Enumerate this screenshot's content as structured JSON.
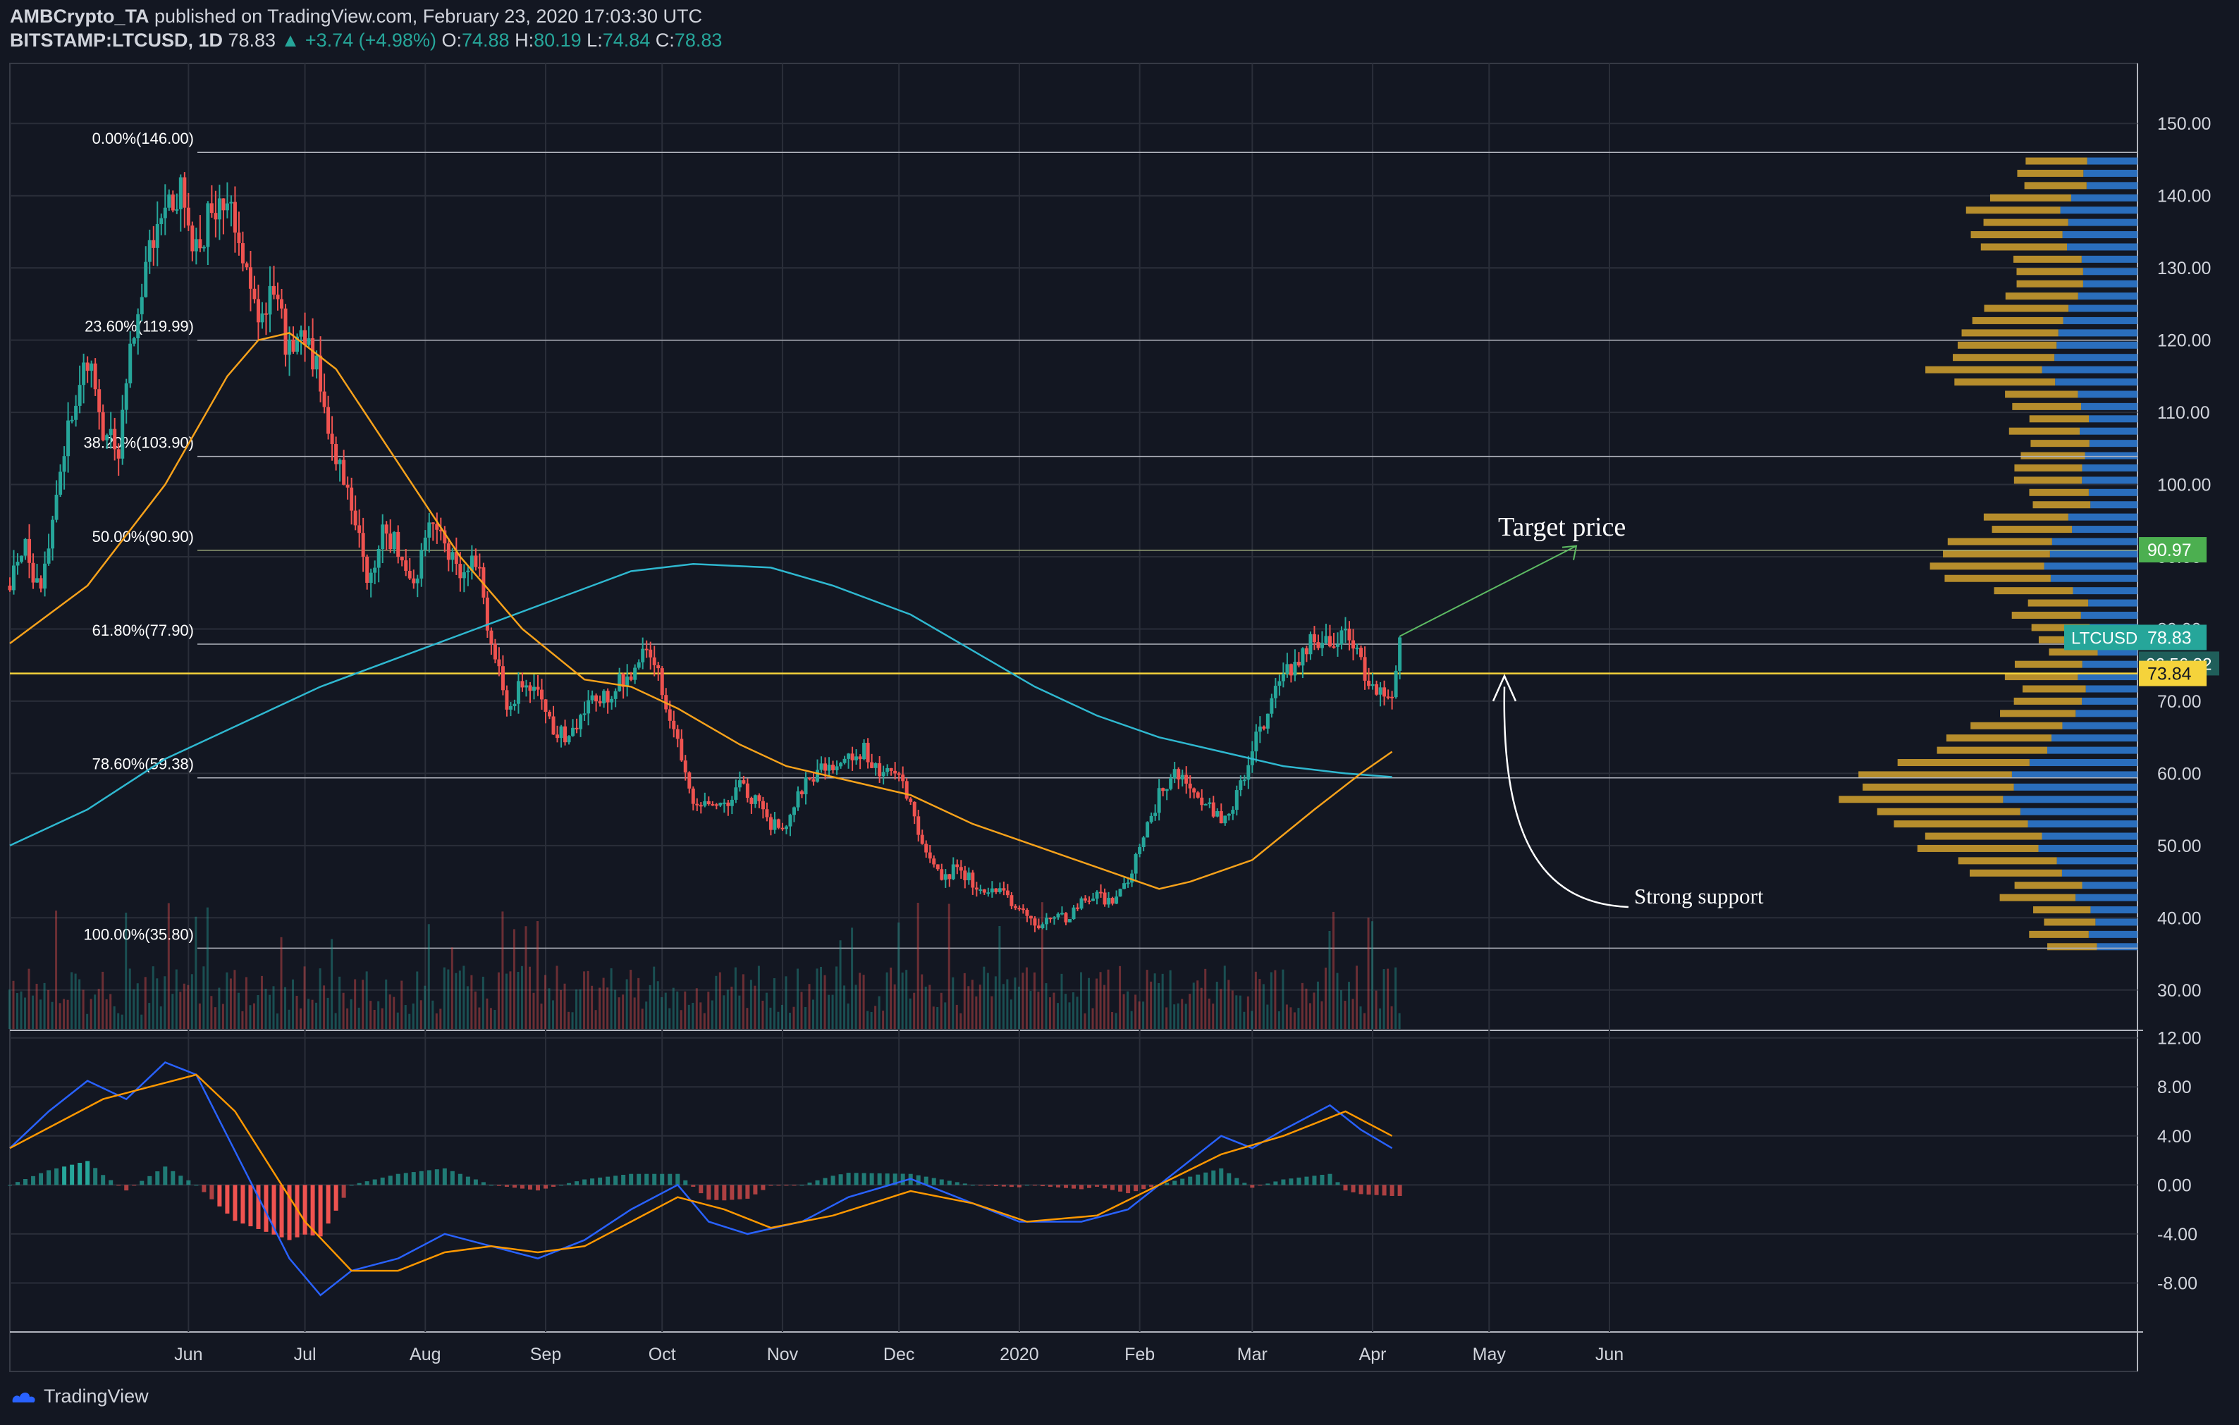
{
  "header": {
    "user": "AMBCrypto_TA",
    "published": "published on TradingView.com, February 23, 2020 17:03:30 UTC",
    "symbol": "BITSTAMP:LTCUSD, 1D",
    "last": "78.83",
    "change": "▲ +3.74 (+4.98%)",
    "o_label": "O:",
    "o": "74.88",
    "h_label": "H:",
    "h": "80.19",
    "l_label": "L:",
    "l": "74.84",
    "c_label": "C:",
    "c": "78.83"
  },
  "footer": {
    "brand": "TradingView"
  },
  "annotations": {
    "target": "Target price",
    "support": "Strong support"
  },
  "colors": {
    "background": "#131722",
    "up": "#26a69a",
    "down": "#ef5350",
    "ma_short": "#f7a21b",
    "ma_long": "#2fb8d0",
    "macd": "#2962ff",
    "signal": "#ff9800",
    "volume_profile_up": "#2a6ebd",
    "volume_profile_down": "#c99a2e",
    "support_line": "#f5d33b"
  },
  "chart_data": [
    {
      "type": "candlestick",
      "symbol": "BITSTAMP:LTCUSD",
      "timeframe": "1D",
      "x_ticks": [
        "Jun",
        "Jul",
        "Aug",
        "Sep",
        "Oct",
        "Nov",
        "Dec",
        "2020",
        "Feb",
        "Mar",
        "Apr",
        "May",
        "Jun"
      ],
      "y_ticks": [
        "150.00",
        "140.00",
        "130.00",
        "120.00",
        "110.00",
        "100.00",
        "90.00",
        "80.00",
        "70.00",
        "60.00",
        "50.00",
        "40.00",
        "30.00"
      ],
      "ylim": [
        25,
        155
      ],
      "fib_levels": [
        {
          "label": "0.00%(146.00)",
          "value": 146.0
        },
        {
          "label": "23.60%(119.99)",
          "value": 119.99
        },
        {
          "label": "38.20%(103.90)",
          "value": 103.9
        },
        {
          "label": "50.00%(90.90)",
          "value": 90.9
        },
        {
          "label": "61.80%(77.90)",
          "value": 77.9
        },
        {
          "label": "78.60%(59.38)",
          "value": 59.38
        },
        {
          "label": "100.00%(35.80)",
          "value": 35.8
        }
      ],
      "support_level": 73.84,
      "price_labels": [
        {
          "text": "90.97",
          "value": 90.97,
          "color": "#4caf50"
        },
        {
          "text": "LTCUSD",
          "value": 78.83,
          "color": "#26a69a"
        },
        {
          "text": "78.83",
          "value": 78.83,
          "color": "#26a69a"
        },
        {
          "text": "06:56:32",
          "value": 75.5,
          "color": "#26a69a"
        },
        {
          "text": "73.84",
          "value": 73.84,
          "color": "#f5d33b"
        }
      ],
      "price_path": [
        [
          0,
          86
        ],
        [
          4,
          92
        ],
        [
          8,
          84
        ],
        [
          12,
          99
        ],
        [
          16,
          110
        ],
        [
          20,
          117
        ],
        [
          24,
          108
        ],
        [
          28,
          104
        ],
        [
          32,
          122
        ],
        [
          36,
          132
        ],
        [
          40,
          138
        ],
        [
          44,
          140
        ],
        [
          48,
          133
        ],
        [
          52,
          138
        ],
        [
          56,
          140
        ],
        [
          60,
          132
        ],
        [
          64,
          122
        ],
        [
          68,
          126
        ],
        [
          72,
          118
        ],
        [
          76,
          121
        ],
        [
          80,
          114
        ],
        [
          84,
          104
        ],
        [
          88,
          98
        ],
        [
          92,
          86
        ],
        [
          96,
          94
        ],
        [
          100,
          91
        ],
        [
          104,
          86
        ],
        [
          108,
          96
        ],
        [
          112,
          92
        ],
        [
          116,
          86
        ],
        [
          120,
          90
        ],
        [
          124,
          78
        ],
        [
          128,
          70
        ],
        [
          132,
          72
        ],
        [
          136,
          73
        ],
        [
          140,
          66
        ],
        [
          144,
          65
        ],
        [
          148,
          69
        ],
        [
          152,
          70
        ],
        [
          156,
          72
        ],
        [
          160,
          74
        ],
        [
          164,
          78
        ],
        [
          168,
          72
        ],
        [
          172,
          65
        ],
        [
          176,
          56
        ],
        [
          180,
          55
        ],
        [
          184,
          56
        ],
        [
          188,
          58
        ],
        [
          192,
          56
        ],
        [
          196,
          53
        ],
        [
          200,
          52
        ],
        [
          204,
          58
        ],
        [
          208,
          60
        ],
        [
          212,
          61
        ],
        [
          216,
          62
        ],
        [
          220,
          63
        ],
        [
          224,
          60
        ],
        [
          228,
          61
        ],
        [
          232,
          55
        ],
        [
          236,
          50
        ],
        [
          240,
          45
        ],
        [
          244,
          47
        ],
        [
          248,
          45
        ],
        [
          252,
          44
        ],
        [
          256,
          43
        ],
        [
          260,
          41
        ],
        [
          264,
          39
        ],
        [
          268,
          40
        ],
        [
          272,
          40
        ],
        [
          276,
          42
        ],
        [
          280,
          43
        ],
        [
          284,
          42
        ],
        [
          288,
          45
        ],
        [
          292,
          51
        ],
        [
          296,
          57
        ],
        [
          300,
          61
        ],
        [
          304,
          58
        ],
        [
          308,
          56
        ],
        [
          312,
          53
        ],
        [
          316,
          57
        ],
        [
          320,
          63
        ],
        [
          324,
          69
        ],
        [
          328,
          73
        ],
        [
          332,
          76
        ],
        [
          336,
          79
        ],
        [
          340,
          77
        ],
        [
          344,
          79
        ],
        [
          348,
          75
        ],
        [
          352,
          72
        ],
        [
          356,
          70
        ],
        [
          358,
          78.83
        ]
      ],
      "ma_short_path": [
        [
          0,
          78
        ],
        [
          20,
          86
        ],
        [
          40,
          100
        ],
        [
          56,
          115
        ],
        [
          64,
          120
        ],
        [
          72,
          121
        ],
        [
          84,
          116
        ],
        [
          100,
          103
        ],
        [
          116,
          90
        ],
        [
          132,
          80
        ],
        [
          148,
          73
        ],
        [
          160,
          72
        ],
        [
          172,
          69
        ],
        [
          188,
          64
        ],
        [
          200,
          61
        ],
        [
          216,
          59
        ],
        [
          232,
          57
        ],
        [
          248,
          53
        ],
        [
          264,
          50
        ],
        [
          280,
          47
        ],
        [
          296,
          44
        ],
        [
          304,
          45
        ],
        [
          320,
          48
        ],
        [
          336,
          55
        ],
        [
          348,
          60
        ],
        [
          356,
          63
        ]
      ],
      "ma_long_path": [
        [
          0,
          50
        ],
        [
          20,
          55
        ],
        [
          40,
          62
        ],
        [
          60,
          67
        ],
        [
          80,
          72
        ],
        [
          100,
          76
        ],
        [
          120,
          80
        ],
        [
          140,
          84
        ],
        [
          160,
          88
        ],
        [
          176,
          89
        ],
        [
          196,
          88.5
        ],
        [
          212,
          86
        ],
        [
          232,
          82
        ],
        [
          248,
          77
        ],
        [
          264,
          72
        ],
        [
          280,
          68
        ],
        [
          296,
          65
        ],
        [
          312,
          63
        ],
        [
          328,
          61
        ],
        [
          344,
          60
        ],
        [
          356,
          59.5
        ]
      ]
    },
    {
      "type": "macd",
      "y_ticks": [
        "12.00",
        "8.00",
        "4.00",
        "0.00",
        "-4.00",
        "-8.00"
      ],
      "ylim": [
        -12,
        12.5
      ],
      "macd_path": [
        [
          0,
          3
        ],
        [
          10,
          6
        ],
        [
          20,
          8.5
        ],
        [
          30,
          7
        ],
        [
          40,
          10
        ],
        [
          48,
          9
        ],
        [
          56,
          4
        ],
        [
          64,
          -1
        ],
        [
          72,
          -6
        ],
        [
          80,
          -9
        ],
        [
          88,
          -7
        ],
        [
          100,
          -6
        ],
        [
          112,
          -4
        ],
        [
          124,
          -5
        ],
        [
          136,
          -6
        ],
        [
          148,
          -4.5
        ],
        [
          160,
          -2
        ],
        [
          172,
          0
        ],
        [
          180,
          -3
        ],
        [
          190,
          -4
        ],
        [
          204,
          -3
        ],
        [
          216,
          -1
        ],
        [
          232,
          0.5
        ],
        [
          248,
          -1.5
        ],
        [
          260,
          -3
        ],
        [
          276,
          -3
        ],
        [
          288,
          -2
        ],
        [
          300,
          1
        ],
        [
          312,
          4
        ],
        [
          320,
          3
        ],
        [
          328,
          4.5
        ],
        [
          340,
          6.5
        ],
        [
          348,
          4.5
        ],
        [
          356,
          3
        ]
      ],
      "signal_path": [
        [
          0,
          3
        ],
        [
          12,
          5
        ],
        [
          24,
          7
        ],
        [
          36,
          8
        ],
        [
          48,
          9
        ],
        [
          58,
          6
        ],
        [
          66,
          2
        ],
        [
          76,
          -3
        ],
        [
          88,
          -7
        ],
        [
          100,
          -7
        ],
        [
          112,
          -5.5
        ],
        [
          124,
          -5
        ],
        [
          136,
          -5.5
        ],
        [
          148,
          -5
        ],
        [
          160,
          -3
        ],
        [
          172,
          -1
        ],
        [
          184,
          -2
        ],
        [
          196,
          -3.5
        ],
        [
          212,
          -2.5
        ],
        [
          232,
          -0.5
        ],
        [
          248,
          -1.5
        ],
        [
          262,
          -3
        ],
        [
          280,
          -2.5
        ],
        [
          296,
          0
        ],
        [
          312,
          2.5
        ],
        [
          328,
          4
        ],
        [
          344,
          6
        ],
        [
          356,
          4
        ]
      ]
    }
  ]
}
